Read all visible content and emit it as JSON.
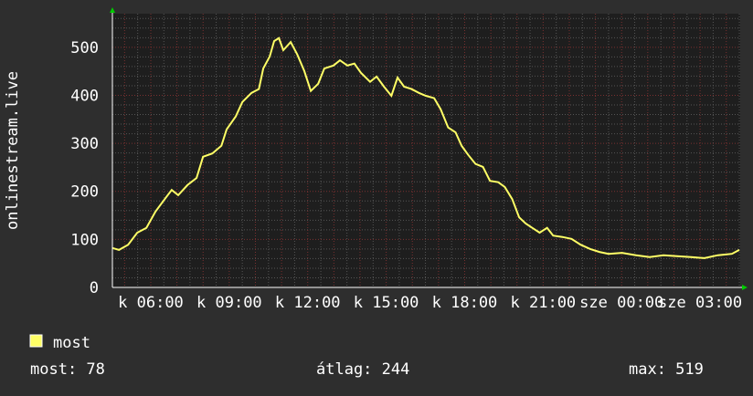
{
  "chart_data": {
    "type": "line",
    "ylabel": "onlinestream.live",
    "ylim": [
      0,
      570
    ],
    "yticks": [
      0,
      100,
      200,
      300,
      400,
      500
    ],
    "x_range": [
      "04:32",
      "04:32"
    ],
    "xticks": [
      {
        "time": "06:00",
        "label": "k 06:00"
      },
      {
        "time": "09:00",
        "label": "k 09:00"
      },
      {
        "time": "12:00",
        "label": "k 12:00"
      },
      {
        "time": "15:00",
        "label": "k 15:00"
      },
      {
        "time": "18:00",
        "label": "k 18:00"
      },
      {
        "time": "21:00",
        "label": "k 21:00"
      },
      {
        "time": "00:00",
        "label": "sze 00:00"
      },
      {
        "time": "03:00",
        "label": "sze 03:00"
      }
    ],
    "grid": true,
    "colors": {
      "background": "#2e2e2e",
      "plot": "#1e1e1e",
      "line": "#ffff66",
      "major_grid": "#7a3030",
      "minor_grid": "#555555",
      "arrow": "#00cc00"
    },
    "series": [
      {
        "name": "most",
        "points": [
          [
            "04:32",
            82
          ],
          [
            "04:47",
            78
          ],
          [
            "05:08",
            89
          ],
          [
            "05:29",
            114
          ],
          [
            "05:50",
            124
          ],
          [
            "06:11",
            158
          ],
          [
            "06:32",
            184
          ],
          [
            "06:48",
            203
          ],
          [
            "07:03",
            192
          ],
          [
            "07:24",
            213
          ],
          [
            "07:45",
            228
          ],
          [
            "08:00",
            272
          ],
          [
            "08:21",
            279
          ],
          [
            "08:42",
            295
          ],
          [
            "08:54",
            329
          ],
          [
            "09:15",
            356
          ],
          [
            "09:30",
            386
          ],
          [
            "09:51",
            405
          ],
          [
            "10:08",
            413
          ],
          [
            "10:18",
            456
          ],
          [
            "10:33",
            481
          ],
          [
            "10:43",
            513
          ],
          [
            "10:54",
            519
          ],
          [
            "11:04",
            494
          ],
          [
            "11:21",
            511
          ],
          [
            "11:36",
            485
          ],
          [
            "11:52",
            451
          ],
          [
            "12:07",
            409
          ],
          [
            "12:24",
            424
          ],
          [
            "12:38",
            456
          ],
          [
            "12:59",
            462
          ],
          [
            "13:14",
            473
          ],
          [
            "13:31",
            462
          ],
          [
            "13:47",
            466
          ],
          [
            "14:02",
            447
          ],
          [
            "14:23",
            428
          ],
          [
            "14:38",
            439
          ],
          [
            "14:55",
            418
          ],
          [
            "15:12",
            399
          ],
          [
            "15:26",
            437
          ],
          [
            "15:41",
            418
          ],
          [
            "15:58",
            413
          ],
          [
            "16:15",
            405
          ],
          [
            "16:31",
            399
          ],
          [
            "16:50",
            394
          ],
          [
            "17:05",
            371
          ],
          [
            "17:22",
            333
          ],
          [
            "17:39",
            323
          ],
          [
            "17:53",
            295
          ],
          [
            "18:08",
            276
          ],
          [
            "18:25",
            257
          ],
          [
            "18:42",
            251
          ],
          [
            "18:58",
            222
          ],
          [
            "19:17",
            219
          ],
          [
            "19:32",
            209
          ],
          [
            "19:49",
            184
          ],
          [
            "20:05",
            146
          ],
          [
            "20:20",
            133
          ],
          [
            "20:35",
            124
          ],
          [
            "20:52",
            114
          ],
          [
            "21:09",
            124
          ],
          [
            "21:23",
            108
          ],
          [
            "21:44",
            105
          ],
          [
            "22:05",
            101
          ],
          [
            "22:26",
            89
          ],
          [
            "22:48",
            80
          ],
          [
            "23:09",
            74
          ],
          [
            "23:30",
            70
          ],
          [
            "00:01",
            72
          ],
          [
            "00:33",
            67
          ],
          [
            "01:04",
            63
          ],
          [
            "01:36",
            67
          ],
          [
            "02:07",
            65
          ],
          [
            "02:39",
            63
          ],
          [
            "03:10",
            61
          ],
          [
            "03:41",
            67
          ],
          [
            "04:13",
            70
          ],
          [
            "04:30",
            78
          ]
        ]
      }
    ]
  },
  "legend": {
    "label": "most",
    "color": "#ffff66"
  },
  "stats": {
    "current": "most: 78",
    "average": "átlag: 244",
    "max": "max: 519"
  }
}
